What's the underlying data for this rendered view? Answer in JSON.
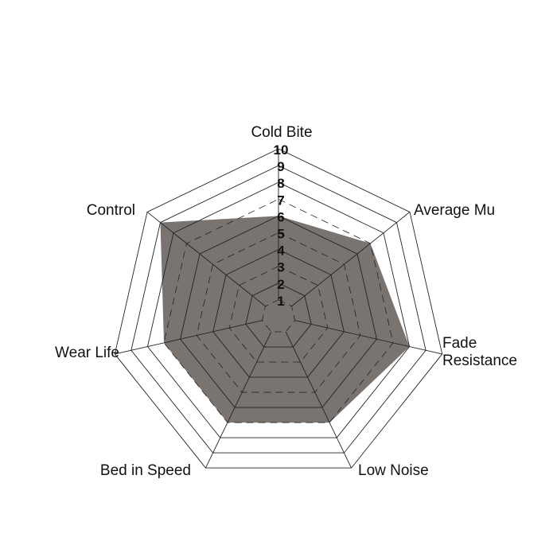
{
  "chart_data": {
    "type": "radar",
    "categories": [
      "Cold Bite",
      "Average Mu",
      "Fade Resistance",
      "Low Noise",
      "Bed in Speed",
      "Wear Life",
      "Control"
    ],
    "values": [
      6,
      7,
      8,
      7,
      7,
      7,
      9
    ],
    "rlim": [
      0,
      10
    ],
    "tick_labels": [
      "1",
      "2",
      "3",
      "4",
      "5",
      "6",
      "7",
      "8",
      "9",
      "10"
    ],
    "fill_color": "#7a7471",
    "grid": true,
    "legend": "none"
  }
}
